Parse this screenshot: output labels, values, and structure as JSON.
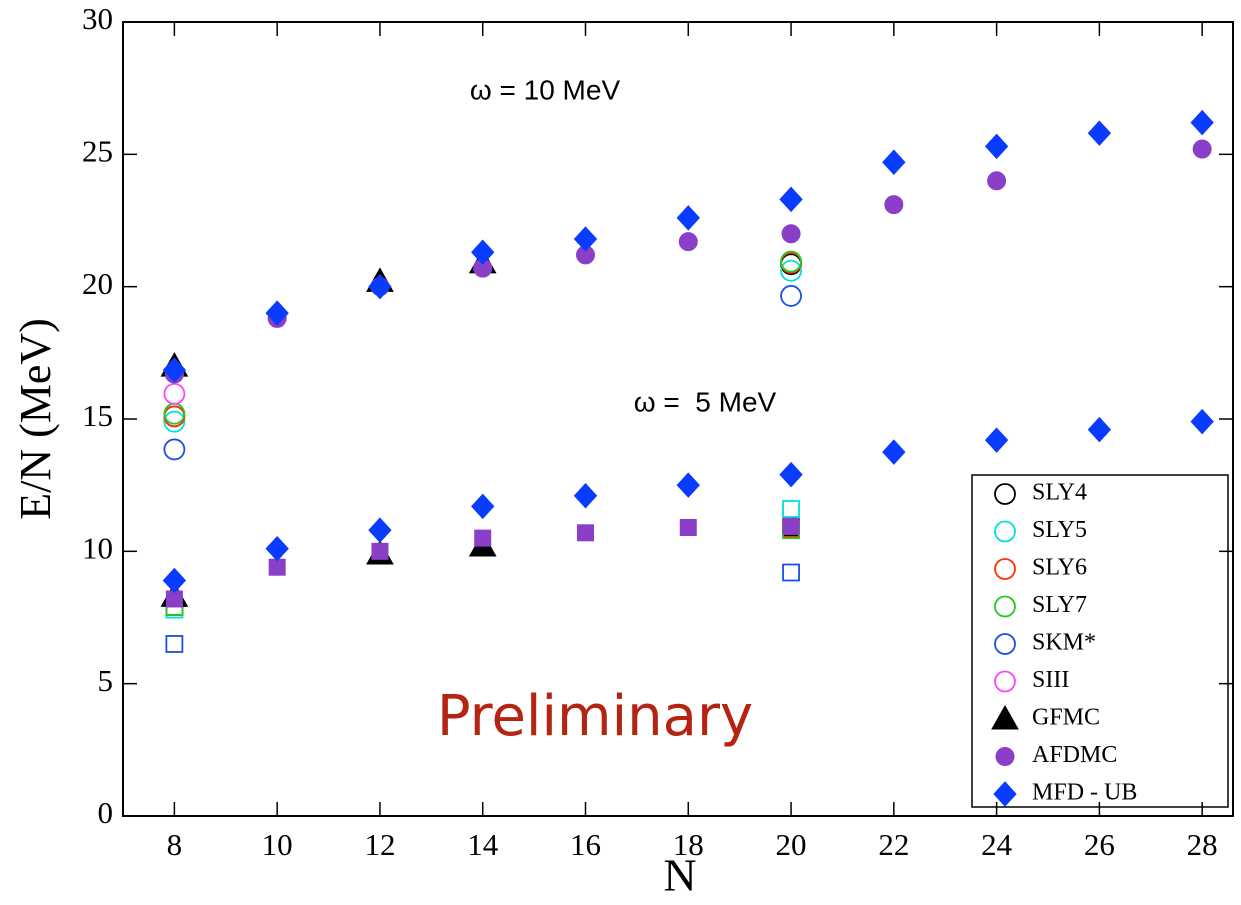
{
  "chart_data": {
    "type": "scatter",
    "x_label": "N",
    "y_label": "E/N (MeV)",
    "annotations": [
      "ω = 10 MeV",
      "ω =  5 MeV",
      "Preliminary"
    ],
    "xlim": [
      7,
      28.6
    ],
    "ylim": [
      0,
      30
    ],
    "xticks": [
      8,
      10,
      12,
      14,
      16,
      18,
      20,
      22,
      24,
      26,
      28
    ],
    "yticks": [
      0,
      5,
      10,
      15,
      20,
      25,
      30
    ],
    "legend": "lower right",
    "series": [
      {
        "name": "SLY4",
        "color": "#000000",
        "fill": "open",
        "x": [
          8,
          20,
          8,
          20
        ],
        "values": [
          15.1,
          20.85,
          7.9,
          10.9
        ],
        "shapes": [
          "circle",
          "circle",
          "square",
          "square"
        ]
      },
      {
        "name": "SLY5",
        "color": "#00e0e0",
        "fill": "open",
        "x": [
          8,
          20,
          8,
          20
        ],
        "values": [
          14.9,
          20.6,
          7.8,
          11.6
        ],
        "shapes": [
          "circle",
          "circle",
          "square",
          "square"
        ]
      },
      {
        "name": "SLY6",
        "color": "#ff3300",
        "fill": "open",
        "x": [
          8,
          20,
          8,
          20
        ],
        "values": [
          15.1,
          20.9,
          7.9,
          10.85
        ],
        "shapes": [
          "circle",
          "circle",
          "square",
          "square"
        ]
      },
      {
        "name": "SLY7",
        "color": "#22cc22",
        "fill": "open",
        "x": [
          8,
          20,
          8,
          20
        ],
        "values": [
          15.2,
          20.95,
          7.9,
          10.8
        ],
        "shapes": [
          "circle",
          "circle",
          "square",
          "square"
        ]
      },
      {
        "name": "SKM*",
        "color": "#1a4fe8",
        "fill": "open",
        "x": [
          8,
          20,
          8,
          20
        ],
        "values": [
          13.85,
          19.65,
          6.5,
          9.2
        ],
        "shapes": [
          "circle",
          "circle",
          "square",
          "square"
        ]
      },
      {
        "name": "SIII",
        "color": "#ff44ff",
        "fill": "open",
        "x": [
          8
        ],
        "values": [
          15.95
        ],
        "shapes": [
          "circle"
        ]
      },
      {
        "name": "GFMC",
        "color": "#000000",
        "fill": "filled",
        "x": [
          8,
          12,
          14,
          8,
          12,
          14
        ],
        "values": [
          17.0,
          20.2,
          20.9,
          8.3,
          9.9,
          10.2
        ],
        "shapes": [
          "triangle",
          "triangle",
          "triangle",
          "triangle",
          "triangle",
          "triangle"
        ]
      },
      {
        "name": "AFDMC",
        "color": "#8b3fc8",
        "fill": "filled",
        "x": [
          8,
          10,
          12,
          14,
          16,
          18,
          20,
          22,
          24,
          28,
          8,
          10,
          12,
          14,
          16,
          18,
          20
        ],
        "values": [
          16.7,
          18.8,
          20.0,
          20.7,
          21.2,
          21.7,
          22.0,
          23.1,
          24.0,
          25.2,
          8.2,
          9.4,
          10.0,
          10.5,
          10.7,
          10.9,
          10.95
        ],
        "shapes": [
          "circle",
          "circle",
          "circle",
          "circle",
          "circle",
          "circle",
          "circle",
          "circle",
          "circle",
          "circle",
          "square",
          "square",
          "square",
          "square",
          "square",
          "square",
          "square"
        ]
      },
      {
        "name": "MFD - UB",
        "color": "#0a3cff",
        "fill": "filled",
        "x": [
          8,
          10,
          12,
          14,
          16,
          18,
          20,
          22,
          24,
          26,
          28,
          8,
          10,
          12,
          14,
          16,
          18,
          20,
          22,
          24,
          26,
          28
        ],
        "values": [
          16.85,
          19.0,
          20.0,
          21.3,
          21.8,
          22.6,
          23.3,
          24.7,
          25.3,
          25.8,
          26.2,
          8.9,
          10.1,
          10.8,
          11.7,
          12.1,
          12.5,
          12.9,
          13.75,
          14.2,
          14.6,
          14.9
        ],
        "shapes": [
          "diamond",
          "diamond",
          "diamond",
          "diamond",
          "diamond",
          "diamond",
          "diamond",
          "diamond",
          "diamond",
          "diamond",
          "diamond",
          "diamond",
          "diamond",
          "diamond",
          "diamond",
          "diamond",
          "diamond",
          "diamond",
          "diamond",
          "diamond",
          "diamond",
          "diamond"
        ]
      }
    ]
  }
}
